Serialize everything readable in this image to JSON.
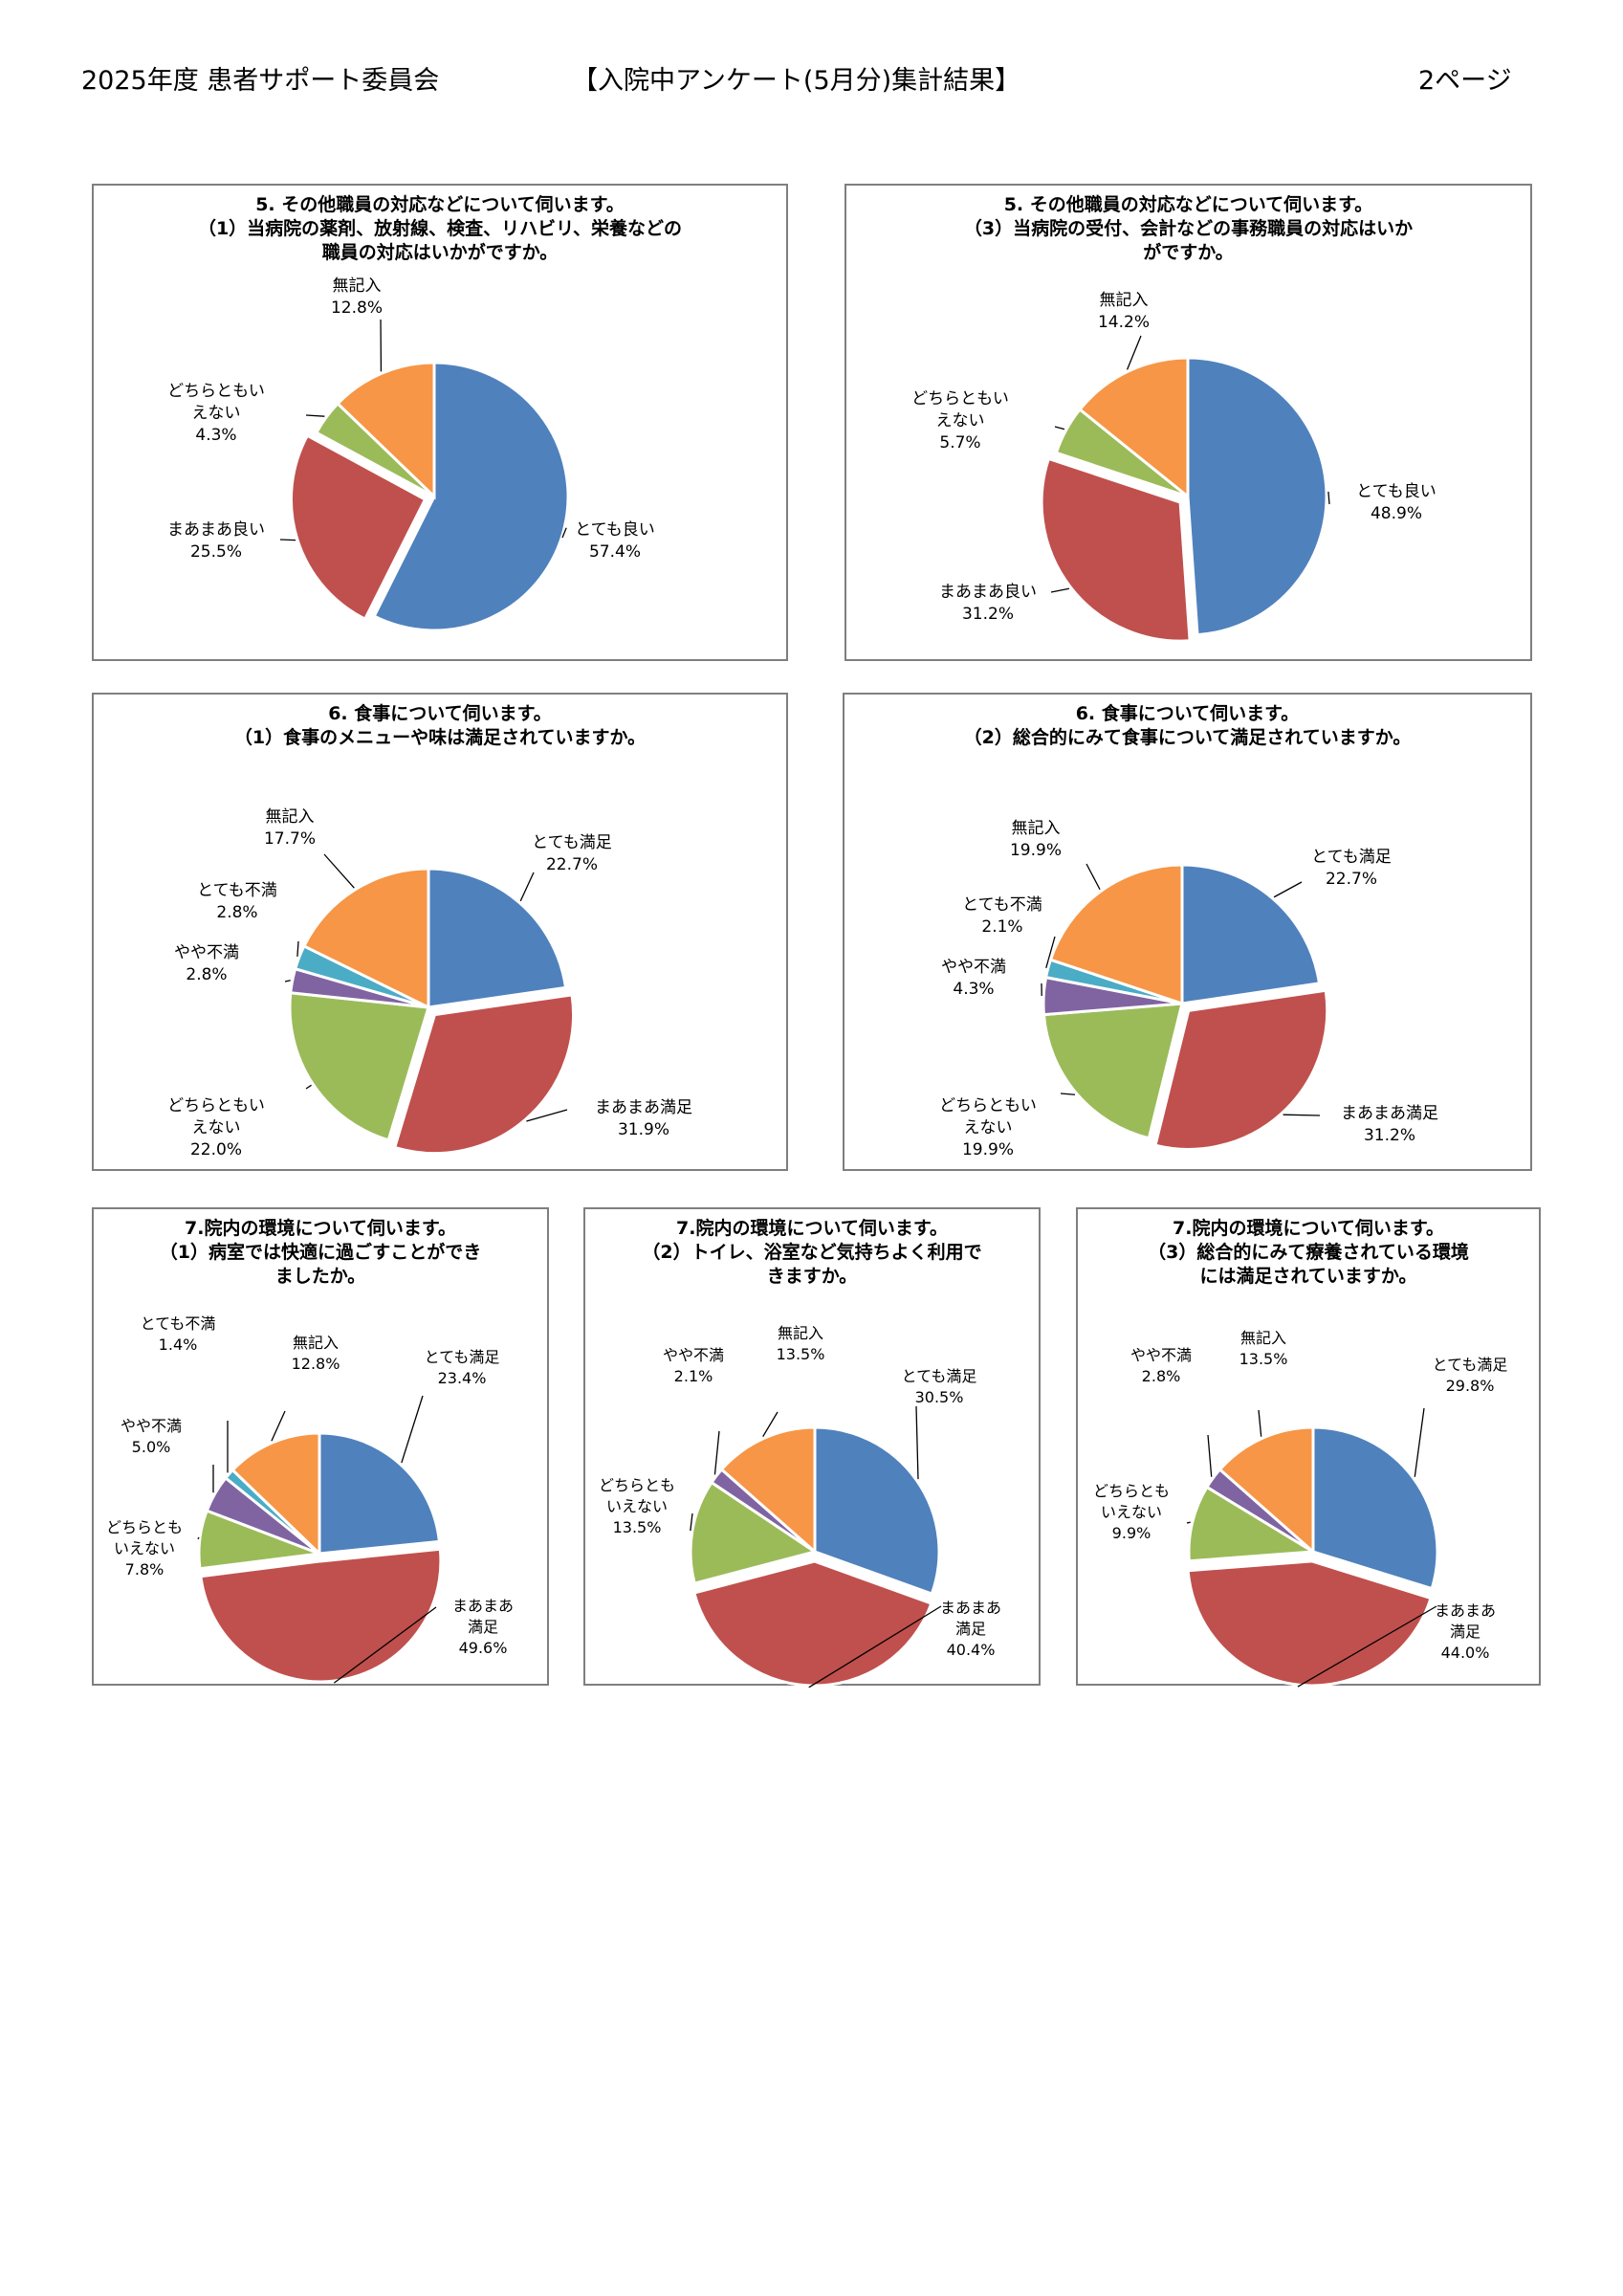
{
  "header": {
    "left": "2025年度 患者サポート委員会",
    "center": "【入院中アンケート(5月分)集計結果】",
    "right": "2ページ"
  },
  "colors": {
    "blue": "#4f81bd",
    "red": "#c0504d",
    "green": "#9bbb59",
    "purple": "#8064a2",
    "teal": "#4bacc6",
    "orange": "#f79646"
  },
  "chart_data": [
    {
      "type": "pie",
      "title": "5. その他職員の対応などについて伺います。\n（1）当病院の薬剤、放射線、検査、リハビリ、栄養などの\n職員の対応はいかがですか。",
      "slices": [
        {
          "name": "とても良い",
          "value": 57.4,
          "label": "57.4%",
          "color": "#4f81bd"
        },
        {
          "name": "まあまあ良い",
          "value": 25.5,
          "label": "25.5%",
          "color": "#c0504d"
        },
        {
          "name": "どちらともいえない",
          "value": 4.3,
          "label": "4.3%",
          "color": "#9bbb59"
        },
        {
          "name": "無記入",
          "value": 12.8,
          "label": "12.8%",
          "color": "#f79646"
        }
      ]
    },
    {
      "type": "pie",
      "title": "5. その他職員の対応などについて伺います。\n（3）当病院の受付、会計などの事務職員の対応はいか\nがですか。",
      "slices": [
        {
          "name": "とても良い",
          "value": 48.9,
          "label": "48.9%",
          "color": "#4f81bd"
        },
        {
          "name": "まあまあ良い",
          "value": 31.2,
          "label": "31.2%",
          "color": "#c0504d"
        },
        {
          "name": "どちらともいえない",
          "value": 5.7,
          "label": "5.7%",
          "color": "#9bbb59"
        },
        {
          "name": "無記入",
          "value": 14.2,
          "label": "14.2%",
          "color": "#f79646"
        }
      ]
    },
    {
      "type": "pie",
      "title": "6. 食事について伺います。\n（1）食事のメニューや味は満足されていますか。",
      "slices": [
        {
          "name": "とても満足",
          "value": 22.7,
          "label": "22.7%",
          "color": "#4f81bd"
        },
        {
          "name": "まあまあ満足",
          "value": 31.9,
          "label": "31.9%",
          "color": "#c0504d"
        },
        {
          "name": "どちらともいえない",
          "value": 22.0,
          "label": "22.0%",
          "color": "#9bbb59"
        },
        {
          "name": "やや不満",
          "value": 2.8,
          "label": "2.8%",
          "color": "#8064a2"
        },
        {
          "name": "とても不満",
          "value": 2.8,
          "label": "2.8%",
          "color": "#4bacc6"
        },
        {
          "name": "無記入",
          "value": 17.7,
          "label": "17.7%",
          "color": "#f79646"
        }
      ]
    },
    {
      "type": "pie",
      "title": "6. 食事について伺います。\n（2）総合的にみて食事について満足されていますか。",
      "slices": [
        {
          "name": "とても満足",
          "value": 22.7,
          "label": "22.7%",
          "color": "#4f81bd"
        },
        {
          "name": "まあまあ満足",
          "value": 31.2,
          "label": "31.2%",
          "color": "#c0504d"
        },
        {
          "name": "どちらともいえない",
          "value": 19.9,
          "label": "19.9%",
          "color": "#9bbb59"
        },
        {
          "name": "やや不満",
          "value": 4.3,
          "label": "4.3%",
          "color": "#8064a2"
        },
        {
          "name": "とても不満",
          "value": 2.1,
          "label": "2.1%",
          "color": "#4bacc6"
        },
        {
          "name": "無記入",
          "value": 19.9,
          "label": "19.9%",
          "color": "#f79646"
        }
      ]
    },
    {
      "type": "pie",
      "title": "7.院内の環境について伺います。\n（1）病室では快適に過ごすことができ\nましたか。",
      "slices": [
        {
          "name": "とても満足",
          "value": 23.4,
          "label": "23.4%",
          "color": "#4f81bd"
        },
        {
          "name": "まあまあ満足",
          "value": 49.6,
          "label": "49.6%",
          "color": "#c0504d"
        },
        {
          "name": "どちらともいえない",
          "value": 7.8,
          "label": "7.8%",
          "color": "#9bbb59"
        },
        {
          "name": "やや不満",
          "value": 5.0,
          "label": "5.0%",
          "color": "#8064a2"
        },
        {
          "name": "とても不満",
          "value": 1.4,
          "label": "1.4%",
          "color": "#4bacc6"
        },
        {
          "name": "無記入",
          "value": 12.8,
          "label": "12.8%",
          "color": "#f79646"
        }
      ]
    },
    {
      "type": "pie",
      "title": "7.院内の環境について伺います。\n（2）トイレ、浴室など気持ちよく利用で\nきますか。",
      "slices": [
        {
          "name": "とても満足",
          "value": 30.5,
          "label": "30.5%",
          "color": "#4f81bd"
        },
        {
          "name": "まあまあ満足",
          "value": 40.4,
          "label": "40.4%",
          "color": "#c0504d"
        },
        {
          "name": "どちらともいえない",
          "value": 13.5,
          "label": "13.5%",
          "color": "#9bbb59"
        },
        {
          "name": "やや不満",
          "value": 2.1,
          "label": "2.1%",
          "color": "#8064a2"
        },
        {
          "name": "無記入",
          "value": 13.5,
          "label": "13.5%",
          "color": "#f79646"
        }
      ]
    },
    {
      "type": "pie",
      "title": "7.院内の環境について伺います。\n（3）総合的にみて療養されている環境\nには満足されていますか。",
      "slices": [
        {
          "name": "とても満足",
          "value": 29.8,
          "label": "29.8%",
          "color": "#4f81bd"
        },
        {
          "name": "まあまあ満足",
          "value": 44.0,
          "label": "44.0%",
          "color": "#c0504d"
        },
        {
          "name": "どちらともいえない",
          "value": 9.9,
          "label": "9.9%",
          "color": "#9bbb59"
        },
        {
          "name": "やや不満",
          "value": 2.8,
          "label": "2.8%",
          "color": "#8064a2"
        },
        {
          "name": "無記入",
          "value": 13.5,
          "label": "13.5%",
          "color": "#f79646"
        }
      ]
    }
  ]
}
